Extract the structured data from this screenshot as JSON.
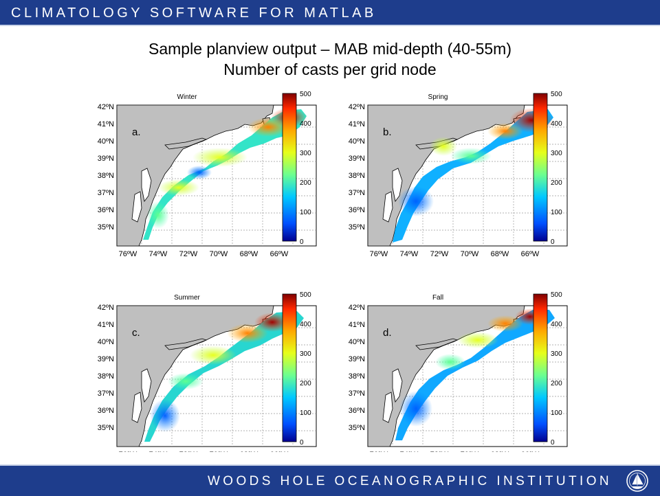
{
  "header": {
    "title": "CLIMATOLOGY SOFTWARE FOR MATLAB"
  },
  "slide": {
    "title_line1": "Sample planview output – MAB mid-depth (40-55m)",
    "title_line2": "Number of casts per grid node"
  },
  "panels": [
    {
      "season": "Winter",
      "letter": "a."
    },
    {
      "season": "Spring",
      "letter": "b."
    },
    {
      "season": "Summer",
      "letter": "c."
    },
    {
      "season": "Fall",
      "letter": "d."
    }
  ],
  "axes": {
    "lat_labels": [
      "42ºN",
      "41ºN",
      "40ºN",
      "39ºN",
      "38ºN",
      "37ºN",
      "36ºN",
      "35ºN"
    ],
    "lon_labels": [
      "76ºW",
      "74ºW",
      "72ºW",
      "70ºW",
      "68ºW",
      "66ºW"
    ],
    "colorbar_labels": [
      "500",
      "400",
      "300",
      "200",
      "100",
      "0"
    ]
  },
  "colors": {
    "bar": "#1e3d8c",
    "land": "#bfbfbf",
    "colormap": [
      "#00008f",
      "#0050ff",
      "#00c8ff",
      "#6cff90",
      "#e6ff1a",
      "#ffa800",
      "#ff2800",
      "#800000"
    ]
  },
  "footer": {
    "institution": "WOODS HOLE OCEANOGRAPHIC INSTITUTION"
  },
  "logo": {
    "icon": "sailboat-seal-icon"
  }
}
